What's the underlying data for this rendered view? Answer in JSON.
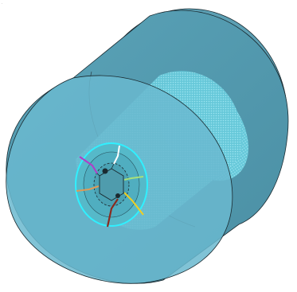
{
  "scene": {
    "background": "#ffffff",
    "body_color": "#4f97ad",
    "body_face_color": "#66b6cf",
    "cylinder_color": "#5fd0e0",
    "cylinder_dark": "#3fa8c0",
    "edge_color": "#1a2a30",
    "highlight_ring": "#30f0ff",
    "wires": [
      {
        "name": "white-wire",
        "color": "#ffffff"
      },
      {
        "name": "purple-wire",
        "color": "#b23cc8"
      },
      {
        "name": "orange-wire",
        "color": "#e09a55"
      },
      {
        "name": "red-wire",
        "color": "#8b2a1e"
      },
      {
        "name": "yellow-wire",
        "color": "#f0d020"
      },
      {
        "name": "light-green-wire",
        "color": "#a8e07a"
      }
    ]
  }
}
